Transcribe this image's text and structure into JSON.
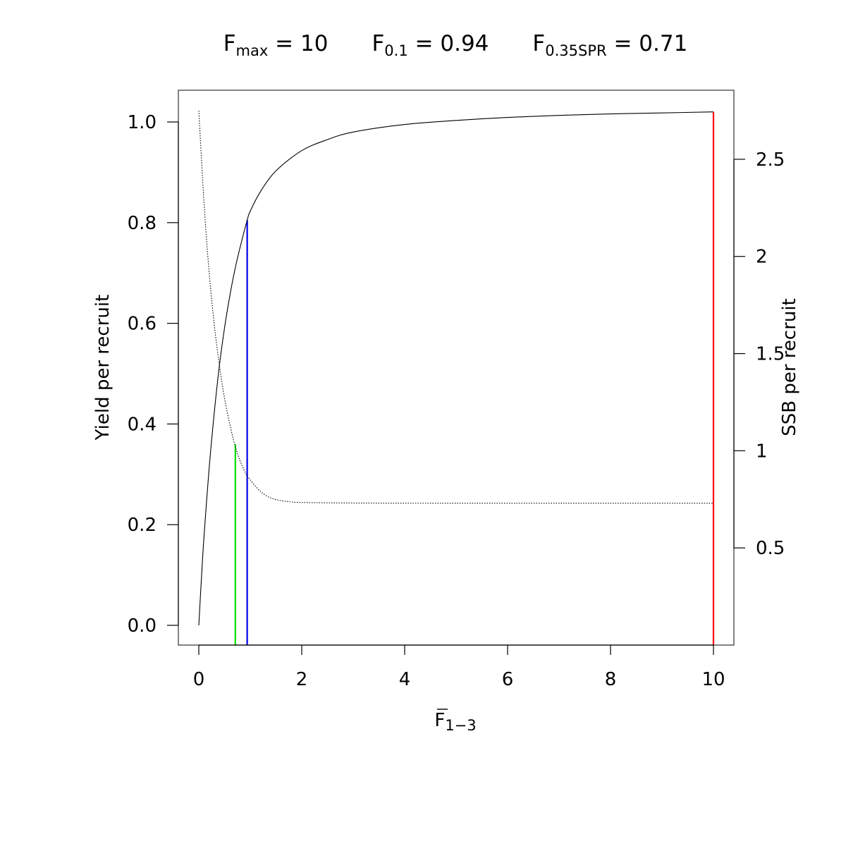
{
  "chart_data": {
    "type": "line",
    "title": {
      "parts": [
        {
          "base": "F",
          "sub": "max",
          "value": "= 10"
        },
        {
          "base": "F",
          "sub": "0.1",
          "value": "= 0.94"
        },
        {
          "base": "F",
          "sub": "0.35SPR",
          "value": "= 0.71"
        }
      ]
    },
    "xlabel": {
      "base": "F",
      "sub": "1−3",
      "overline": true
    },
    "ylabel_left": "Yield per recruit",
    "ylabel_right": "SSB per recruit",
    "xlim": [
      0,
      10
    ],
    "ylim_left": [
      0,
      1.02
    ],
    "ylim_right": [
      0,
      2.75
    ],
    "x_ticks": [
      "0",
      "2",
      "4",
      "6",
      "8",
      "10"
    ],
    "y_ticks_left": [
      "0.0",
      "0.2",
      "0.4",
      "0.6",
      "0.8",
      "1.0"
    ],
    "y_ticks_right": [
      "0.5",
      "1",
      "1.5",
      "2",
      "2.5"
    ],
    "series": [
      {
        "axis": "left",
        "style": "solid",
        "color": "#000000",
        "x": [
          0,
          0.05,
          0.1,
          0.2,
          0.3,
          0.4,
          0.5,
          0.6,
          0.7,
          0.8,
          0.94,
          1.0,
          1.2,
          1.5,
          2.0,
          2.5,
          3.0,
          4.0,
          5.0,
          6.0,
          7.0,
          8.0,
          9.0,
          10.0
        ],
        "y": [
          0,
          0.092,
          0.175,
          0.311,
          0.422,
          0.516,
          0.591,
          0.653,
          0.706,
          0.75,
          0.805,
          0.823,
          0.862,
          0.903,
          0.943,
          0.965,
          0.98,
          0.995,
          1.003,
          1.009,
          1.013,
          1.016,
          1.018,
          1.02
        ]
      },
      {
        "axis": "right",
        "style": "dotted",
        "color": "#000000",
        "x": [
          0,
          0.1,
          0.2,
          0.3,
          0.4,
          0.5,
          0.6,
          0.7,
          0.8,
          0.9,
          1.0,
          1.2,
          1.4,
          1.6,
          1.8,
          2.0,
          3.0,
          5.0,
          10.0
        ],
        "y": [
          2.75,
          2.28,
          1.92,
          1.65,
          1.44,
          1.27,
          1.14,
          1.03,
          0.95,
          0.89,
          0.85,
          0.79,
          0.757,
          0.743,
          0.737,
          0.734,
          0.731,
          0.73,
          0.73
        ]
      }
    ],
    "reference_lines": [
      {
        "name": "F0.35SPR",
        "x": 0.71,
        "y_top": 0.36,
        "color": "#00dd00"
      },
      {
        "name": "F0.1",
        "x": 0.94,
        "y_top": 0.805,
        "color": "#0000ee"
      },
      {
        "name": "Fmax",
        "x": 10,
        "y_top": 1.02,
        "color": "#ff0000"
      }
    ],
    "grid": false,
    "legend": "none"
  }
}
